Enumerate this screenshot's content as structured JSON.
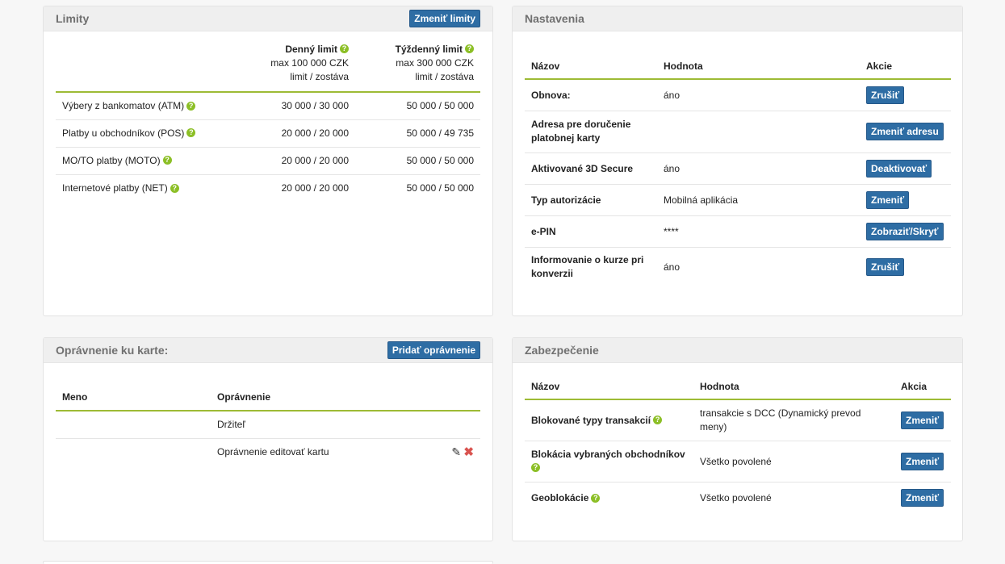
{
  "limits": {
    "title": "Limity",
    "change_button": "Zmeniť limity",
    "daily_header": "Denný limit",
    "weekly_header": "Týždenný limit",
    "daily_max": "max 100 000 CZK",
    "weekly_max": "max 300 000 CZK",
    "daily_sub": "limit / zostáva",
    "weekly_sub": "limit / zostáva",
    "rows": [
      {
        "label": "Výbery z bankomatov (ATM)",
        "daily": "30 000 / 30 000",
        "weekly": "50 000 / 50 000"
      },
      {
        "label": "Platby u obchodníkov (POS)",
        "daily": "20 000 / 20 000",
        "weekly": "50 000 / 49 735"
      },
      {
        "label": "MO/TO platby (MOTO)",
        "daily": "20 000 / 20 000",
        "weekly": "50 000 / 50 000"
      },
      {
        "label": "Internetové platby (NET)",
        "daily": "20 000 / 20 000",
        "weekly": "50 000 / 50 000"
      }
    ]
  },
  "settings": {
    "title": "Nastavenia",
    "col_name": "Názov",
    "col_value": "Hodnota",
    "col_action": "Akcie",
    "rows": [
      {
        "name": "Obnova:",
        "value": "áno",
        "action": "Zrušiť"
      },
      {
        "name": "Adresa pre doručenie platobnej karty",
        "value": "",
        "action": "Zmeniť adresu"
      },
      {
        "name": "Aktivované 3D Secure",
        "value": "áno",
        "action": "Deaktivovať"
      },
      {
        "name": "Typ autorizácie",
        "value": "Mobilná aplikácia",
        "action": "Zmeniť"
      },
      {
        "name": "e-PIN",
        "value": "****",
        "action": "Zobraziť/Skryť"
      },
      {
        "name": "Informovanie o kurze pri konverzii",
        "value": "áno",
        "action": "Zrušiť"
      }
    ]
  },
  "permissions": {
    "title": "Oprávnenie ku karte:",
    "add_button": "Pridať oprávnenie",
    "col_name": "Meno",
    "col_permission": "Oprávnenie",
    "rows": [
      {
        "name": "",
        "permission": "Držiteľ"
      },
      {
        "name": "",
        "permission": "Oprávnenie editovať kartu"
      }
    ]
  },
  "security": {
    "title": "Zabezpečenie",
    "col_name": "Názov",
    "col_value": "Hodnota",
    "col_action": "Akcia",
    "rows": [
      {
        "name": "Blokované typy transakcií",
        "value": "transakcie s DCC (Dynamický prevod meny)",
        "action": "Zmeniť"
      },
      {
        "name": "Blokácia vybraných obchodníkov",
        "value": "Všetko povolené",
        "action": "Zmeniť"
      },
      {
        "name": "Geoblokácie",
        "value": "Všetko povolené",
        "action": "Zmeniť"
      }
    ]
  },
  "icons": {
    "help": "?",
    "pencil": "✎",
    "delete": "✖"
  },
  "colors": {
    "button": "#2e6da4",
    "accent_line": "#9dbb35",
    "help_icon": "#8cbf26",
    "delete_icon": "#d9534f"
  }
}
